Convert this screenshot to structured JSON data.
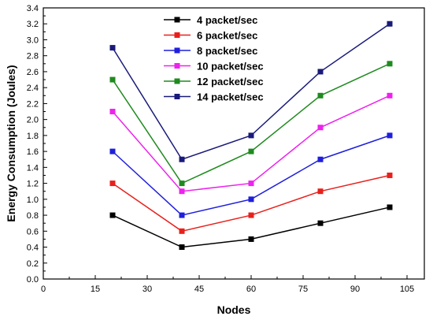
{
  "chart_data": {
    "type": "line",
    "title": "",
    "xlabel": "Nodes",
    "ylabel": "Energy Consumption (Joules)",
    "xlim": [
      0,
      110
    ],
    "ylim": [
      0.0,
      3.4
    ],
    "x_ticks": [
      0,
      15,
      30,
      45,
      60,
      75,
      90,
      105
    ],
    "y_ticks": [
      0.0,
      0.2,
      0.4,
      0.6,
      0.8,
      1.0,
      1.2,
      1.4,
      1.6,
      1.8,
      2.0,
      2.2,
      2.4,
      2.6,
      2.8,
      3.0,
      3.2,
      3.4
    ],
    "grid": false,
    "legend_position": "top-center",
    "x": [
      20,
      40,
      60,
      80,
      100
    ],
    "series": [
      {
        "name": "4 packet/sec",
        "color": "#000000",
        "values": [
          0.8,
          0.4,
          0.5,
          0.7,
          0.9
        ]
      },
      {
        "name": "6 packet/sec",
        "color": "#e8201c",
        "values": [
          1.2,
          0.6,
          0.8,
          1.1,
          1.3
        ]
      },
      {
        "name": "8 packet/sec",
        "color": "#1f1fdc",
        "values": [
          1.6,
          0.8,
          1.0,
          1.5,
          1.8
        ]
      },
      {
        "name": "10 packet/sec",
        "color": "#ee22ee",
        "values": [
          2.1,
          1.1,
          1.2,
          1.9,
          2.3
        ]
      },
      {
        "name": "12 packet/sec",
        "color": "#1f8a1f",
        "values": [
          2.5,
          1.2,
          1.6,
          2.3,
          2.7
        ]
      },
      {
        "name": "14 packet/sec",
        "color": "#1a1a7a",
        "values": [
          2.9,
          1.5,
          1.8,
          2.6,
          3.2
        ]
      }
    ]
  }
}
